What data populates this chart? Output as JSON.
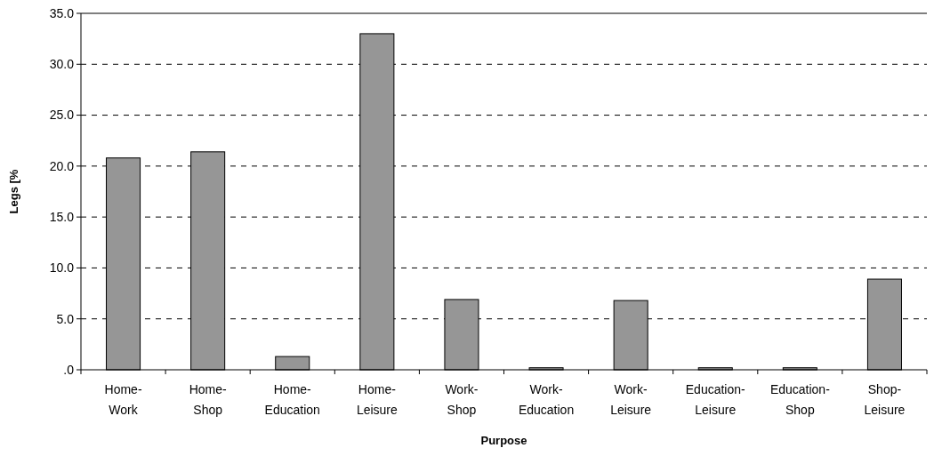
{
  "chart_data": {
    "type": "bar",
    "xlabel": "Purpose",
    "ylabel": "Legs [%",
    "categories": [
      "Home-Work",
      "Home-Shop",
      "Home-Education",
      "Home-Leisure",
      "Work-Shop",
      "Work-Education",
      "Work-Leisure",
      "Education-Leisure",
      "Education-Shop",
      "Shop-Leisure"
    ],
    "values": [
      20.8,
      21.4,
      1.3,
      33.0,
      6.9,
      0.2,
      6.8,
      0.2,
      0.2,
      8.9
    ],
    "color": "#969696",
    "ylim": [
      0,
      35
    ],
    "yticks": [
      {
        "value": 0,
        "label": ".0"
      },
      {
        "value": 5,
        "label": "5.0"
      },
      {
        "value": 10,
        "label": "10.0"
      },
      {
        "value": 15,
        "label": "15.0"
      },
      {
        "value": 20,
        "label": "20.0"
      },
      {
        "value": 25,
        "label": "25.0"
      },
      {
        "value": 30,
        "label": "30.0"
      },
      {
        "value": 35,
        "label": "35.0"
      }
    ],
    "grid": "y"
  }
}
